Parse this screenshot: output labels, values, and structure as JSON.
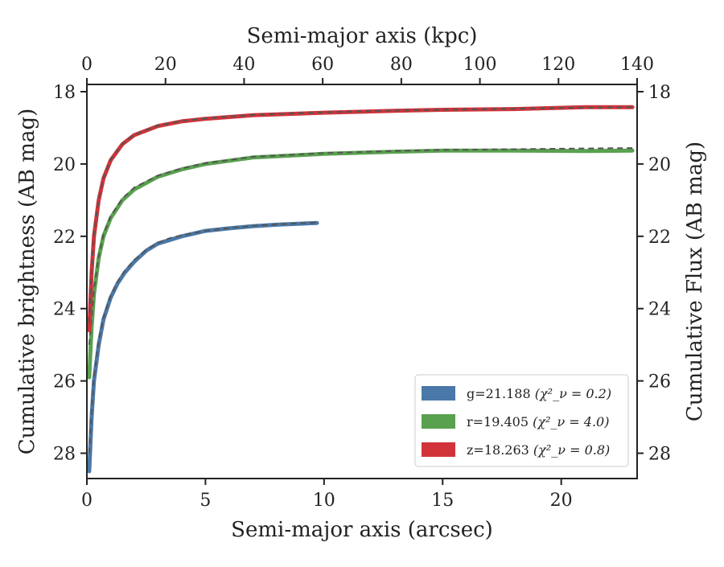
{
  "chart_data": {
    "type": "line",
    "xlabel": "Semi-major axis (arcsec)",
    "ylabel": "Cumulative brightness (AB mag)",
    "top_xlabel": "Semi-major axis (kpc)",
    "right_ylabel": "Cumulative Flux (AB mag)",
    "xlim": [
      0,
      23.2
    ],
    "ylim": [
      28.7,
      17.8
    ],
    "y_inverted": true,
    "top_xlim": [
      0,
      140
    ],
    "x_ticks": [
      0,
      5,
      10,
      15,
      20
    ],
    "x_tick_labels": [
      "0",
      "5",
      "10",
      "15",
      "20"
    ],
    "top_x_ticks": [
      0,
      20,
      40,
      60,
      80,
      100,
      120,
      140
    ],
    "top_x_tick_labels": [
      "0",
      "20",
      "40",
      "60",
      "80",
      "100",
      "120",
      "140"
    ],
    "y_ticks": [
      18,
      20,
      22,
      24,
      26,
      28
    ],
    "y_tick_labels": [
      "18",
      "20",
      "22",
      "24",
      "26",
      "28"
    ],
    "grid": false,
    "legend_position": "bottom-right",
    "model_line_style": "dashed",
    "model_line_color": "#555555",
    "series": [
      {
        "label": "g=21.188 ",
        "label_math": "(χ²_ν = 0.2)",
        "color": "#4a78a8",
        "x": [
          0.1,
          0.2,
          0.3,
          0.5,
          0.7,
          1.0,
          1.3,
          1.6,
          2.0,
          2.5,
          3.0,
          3.5,
          4.0,
          5.0,
          6.0,
          7.0,
          8.0,
          9.0,
          9.7
        ],
        "y": [
          28.5,
          27.0,
          26.0,
          25.0,
          24.3,
          23.7,
          23.3,
          23.0,
          22.7,
          22.4,
          22.2,
          22.1,
          22.0,
          21.85,
          21.78,
          21.72,
          21.68,
          21.65,
          21.63
        ],
        "model_y": [
          28.0,
          26.8,
          25.9,
          24.9,
          24.25,
          23.65,
          23.25,
          22.95,
          22.65,
          22.38,
          22.18,
          22.05,
          21.97,
          21.85,
          21.77,
          21.71,
          21.67,
          21.64,
          21.62
        ]
      },
      {
        "label": "r=19.405 ",
        "label_math": "(χ²_ν = 4.0)",
        "color": "#59a14f",
        "x": [
          0.1,
          0.2,
          0.3,
          0.5,
          0.7,
          1.0,
          1.5,
          2.0,
          3.0,
          4.0,
          5.0,
          7.0,
          10.0,
          13.0,
          15.0,
          18.0,
          21.0,
          23.0
        ],
        "y": [
          25.9,
          24.5,
          23.6,
          22.6,
          22.0,
          21.5,
          21.0,
          20.7,
          20.35,
          20.15,
          20.0,
          19.82,
          19.72,
          19.66,
          19.63,
          19.63,
          19.64,
          19.63
        ],
        "model_y": [
          25.0,
          24.3,
          23.5,
          22.55,
          21.95,
          21.45,
          20.95,
          20.65,
          20.32,
          20.12,
          19.98,
          19.8,
          19.7,
          19.64,
          19.61,
          19.59,
          19.57,
          19.56
        ]
      },
      {
        "label": "z=18.263 ",
        "label_math": "(χ²_ν = 0.8)",
        "color": "#d0343a",
        "x": [
          0.1,
          0.2,
          0.3,
          0.5,
          0.7,
          1.0,
          1.5,
          2.0,
          3.0,
          4.0,
          5.0,
          7.0,
          10.0,
          13.0,
          15.0,
          18.0,
          21.0,
          23.0
        ],
        "y": [
          24.6,
          23.0,
          22.0,
          21.0,
          20.4,
          19.9,
          19.45,
          19.2,
          18.95,
          18.82,
          18.75,
          18.65,
          18.58,
          18.53,
          18.5,
          18.48,
          18.43,
          18.43
        ],
        "model_y": [
          24.4,
          22.9,
          21.95,
          20.95,
          20.38,
          19.88,
          19.44,
          19.19,
          18.94,
          18.81,
          18.74,
          18.64,
          18.57,
          18.52,
          18.5,
          18.47,
          18.44,
          18.43
        ]
      }
    ]
  }
}
